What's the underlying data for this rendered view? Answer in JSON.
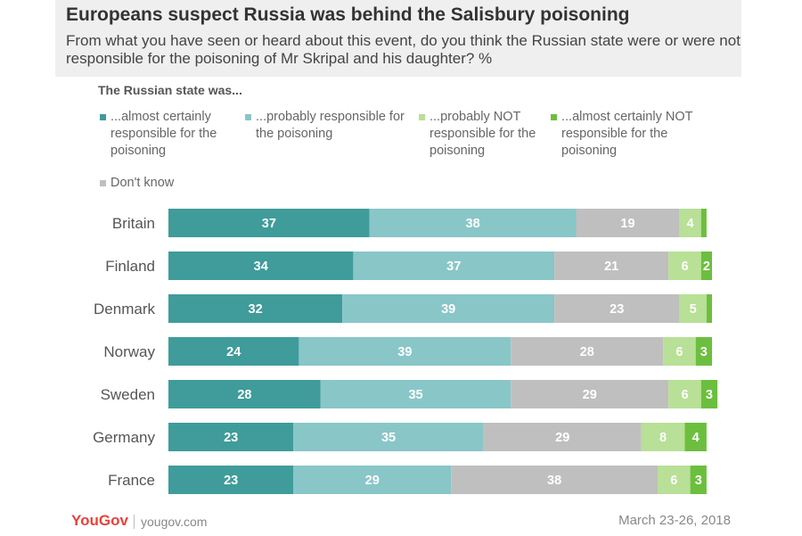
{
  "title": "Europeans suspect Russia was behind the Salisbury poisoning",
  "subtitle": "From what you have seen or heard about this event, do you think the Russian state were or were not responsible for the poisoning of Mr Skripal and his daughter? %",
  "legend_title": "The Russian state was...",
  "footer": {
    "logo": "YouGov",
    "url": "yougov.com",
    "date": "March 23-26, 2018"
  },
  "chart_data": {
    "type": "bar",
    "orientation": "horizontal",
    "stacked": true,
    "xlim": [
      0,
      100
    ],
    "legend_position": "top",
    "categories": [
      "Britain",
      "Finland",
      "Denmark",
      "Norway",
      "Sweden",
      "Germany",
      "France"
    ],
    "series": [
      {
        "name": "...almost certainly responsible for the poisoning",
        "color": "#3f9c9a",
        "values": [
          37,
          34,
          32,
          24,
          28,
          23,
          23
        ]
      },
      {
        "name": "...probably responsible for the poisoning",
        "color": "#89c6c8",
        "values": [
          38,
          37,
          39,
          39,
          35,
          35,
          29
        ]
      },
      {
        "name": "Don't know",
        "color": "#bfbfbf",
        "values": [
          19,
          21,
          23,
          28,
          29,
          29,
          38
        ]
      },
      {
        "name": "...probably NOT responsible for the poisoning",
        "color": "#b8e096",
        "values": [
          4,
          6,
          5,
          6,
          6,
          8,
          6
        ]
      },
      {
        "name": "...almost certainly NOT responsible for the poisoning",
        "color": "#6cbf3e",
        "values": [
          1,
          2,
          1,
          3,
          3,
          4,
          3
        ]
      }
    ],
    "data_labels": [
      [
        "37",
        "38",
        "19",
        "4",
        ""
      ],
      [
        "34",
        "37",
        "21",
        "6",
        "2"
      ],
      [
        "32",
        "39",
        "23",
        "5",
        ""
      ],
      [
        "24",
        "39",
        "28",
        "6",
        "3"
      ],
      [
        "28",
        "35",
        "29",
        "6",
        "3"
      ],
      [
        "23",
        "35",
        "29",
        "8",
        "4"
      ],
      [
        "23",
        "29",
        "38",
        "6",
        "3"
      ]
    ]
  }
}
